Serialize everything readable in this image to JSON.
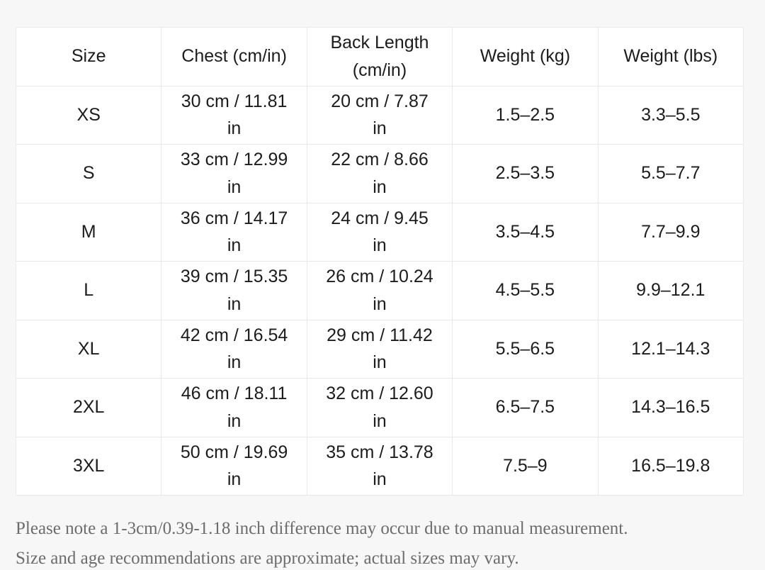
{
  "chart_data": {
    "type": "table",
    "title": "",
    "columns": [
      "Size",
      "Chest (cm/in)",
      "Back Length\n(cm/in)",
      "Weight (kg)",
      "Weight (lbs)"
    ],
    "rows": [
      [
        "XS",
        "30 cm / 11.81\nin",
        "20 cm / 7.87\nin",
        "1.5–2.5",
        "3.3–5.5"
      ],
      [
        "S",
        "33 cm / 12.99\nin",
        "22 cm / 8.66\nin",
        "2.5–3.5",
        "5.5–7.7"
      ],
      [
        "M",
        "36 cm / 14.17\nin",
        "24 cm / 9.45\nin",
        "3.5–4.5",
        "7.7–9.9"
      ],
      [
        "L",
        "39 cm / 15.35\nin",
        "26 cm / 10.24\nin",
        "4.5–5.5",
        "9.9–12.1"
      ],
      [
        "XL",
        "42 cm / 16.54\nin",
        "29 cm / 11.42\nin",
        "5.5–6.5",
        "12.1–14.3"
      ],
      [
        "2XL",
        "46 cm / 18.11\nin",
        "32 cm / 12.60\nin",
        "6.5–7.5",
        "14.3–16.5"
      ],
      [
        "3XL",
        "50 cm / 19.69\nin",
        "35 cm / 13.78\nin",
        "7.5–9",
        "16.5–19.8"
      ]
    ],
    "layout": {
      "grid": "full-borders",
      "cell_background": "#ffffff",
      "page_background": "#f7f7f7",
      "border_color": "#e8e8e8",
      "text_color": "#1c1c1c"
    }
  },
  "footer": {
    "note": "Please note a 1-3cm/0.39-1.18 inch difference may occur due to manual measurement.\nSize and age recommendations are approximate; actual sizes may vary."
  }
}
